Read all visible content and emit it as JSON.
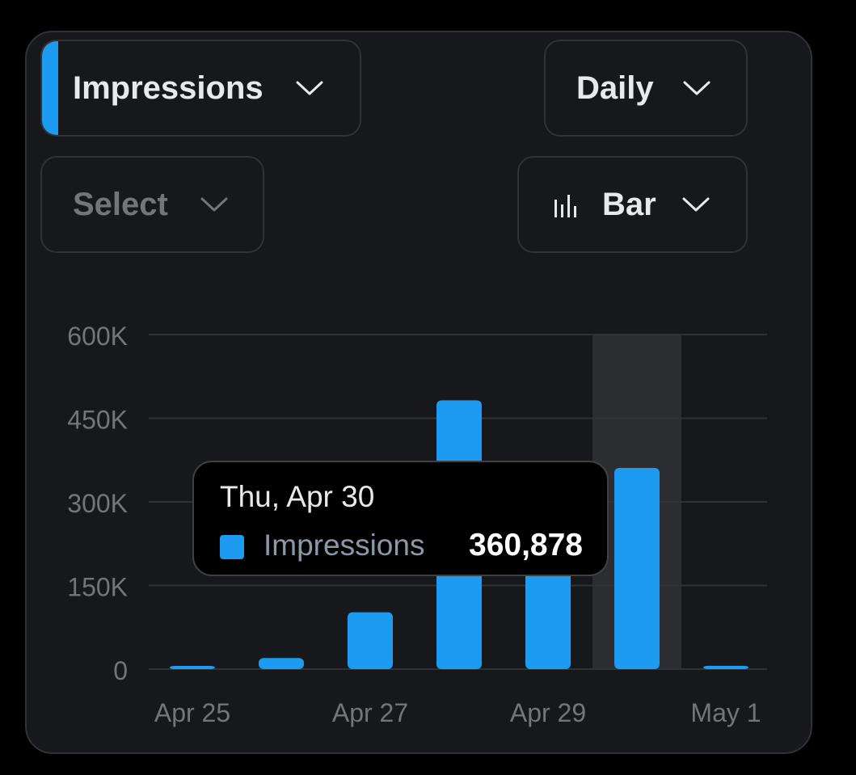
{
  "controls": {
    "metric": "Impressions",
    "period": "Daily",
    "compare_placeholder": "Select",
    "chart_type": "Bar"
  },
  "tooltip": {
    "date": "Thu, Apr 30",
    "series": "Impressions",
    "value": "360,878"
  },
  "colors": {
    "accent": "#1d9bf0",
    "card_background": "#16181c",
    "border": "#2f3336",
    "grid": "#2f3336",
    "highlight_band": "#2b2d31",
    "muted_text": "#71767b"
  },
  "icons": {
    "dropdown": "chevron-down-icon",
    "chart_type": "bar-chart-icon"
  },
  "chart_data": {
    "type": "bar",
    "categories": [
      "Apr 25",
      "Apr 26",
      "Apr 27",
      "Apr 28",
      "Apr 29",
      "Apr 30",
      "May 1"
    ],
    "x_tick_labels": [
      "Apr 25",
      "Apr 27",
      "Apr 29",
      "May 1"
    ],
    "series": [
      {
        "name": "Impressions",
        "values": [
          3000,
          20000,
          102000,
          482000,
          355000,
          360878,
          6000
        ]
      }
    ],
    "y_ticks": [
      0,
      150000,
      300000,
      450000,
      600000
    ],
    "y_tick_labels": [
      "0",
      "150K",
      "300K",
      "450K",
      "600K"
    ],
    "ylim": [
      0,
      600000
    ],
    "highlighted_category": "Apr 30",
    "grid": true,
    "legend": "none"
  }
}
